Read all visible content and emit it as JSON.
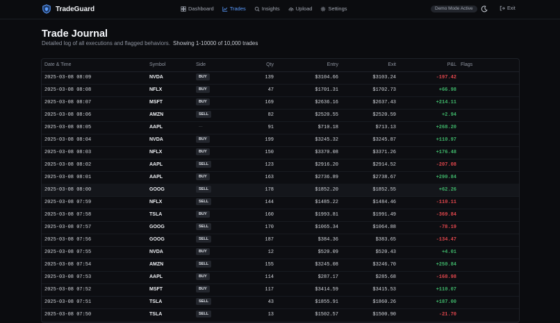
{
  "app": {
    "name": "TradeGuard"
  },
  "nav": [
    {
      "id": "dashboard",
      "label": "Dashboard",
      "icon": "dashboard-icon",
      "active": false
    },
    {
      "id": "trades",
      "label": "Trades",
      "icon": "trades-chart-icon",
      "active": true
    },
    {
      "id": "insights",
      "label": "Insights",
      "icon": "insights-icon",
      "active": false
    },
    {
      "id": "upload",
      "label": "Upload",
      "icon": "upload-cloud-icon",
      "active": false
    },
    {
      "id": "settings",
      "label": "Settings",
      "icon": "gear-icon",
      "active": false
    }
  ],
  "header": {
    "demo_badge": "Demo Mode Active",
    "exit_label": "Exit"
  },
  "page": {
    "title": "Trade Journal",
    "subtitle": "Detailed log of all executions and flagged behaviors.",
    "count_text": "Showing 1-10000 of 10,000 trades"
  },
  "table": {
    "columns": {
      "datetime": "Date & Time",
      "symbol": "Symbol",
      "side": "Side",
      "qty": "Qty",
      "entry": "Entry",
      "exit": "Exit",
      "pnl": "P&L",
      "flags": "Flags"
    },
    "rows": [
      {
        "datetime": "2025-03-08 08:09",
        "symbol": "NVDA",
        "side": "BUY",
        "qty": "139",
        "entry": "$3104.66",
        "exit": "$3103.24",
        "pnl": "-197.42"
      },
      {
        "datetime": "2025-03-08 08:08",
        "symbol": "NFLX",
        "side": "BUY",
        "qty": "47",
        "entry": "$1701.31",
        "exit": "$1702.73",
        "pnl": "+66.98"
      },
      {
        "datetime": "2025-03-08 08:07",
        "symbol": "MSFT",
        "side": "BUY",
        "qty": "169",
        "entry": "$2636.16",
        "exit": "$2637.43",
        "pnl": "+214.11"
      },
      {
        "datetime": "2025-03-08 08:06",
        "symbol": "AMZN",
        "side": "SELL",
        "qty": "82",
        "entry": "$2520.55",
        "exit": "$2520.59",
        "pnl": "+2.94"
      },
      {
        "datetime": "2025-03-08 08:05",
        "symbol": "AAPL",
        "side": "—",
        "qty": "91",
        "entry": "$710.18",
        "exit": "$713.13",
        "pnl": "+268.20"
      },
      {
        "datetime": "2025-03-08 08:04",
        "symbol": "NVDA",
        "side": "BUY",
        "qty": "199",
        "entry": "$3245.32",
        "exit": "$3245.87",
        "pnl": "+110.97"
      },
      {
        "datetime": "2025-03-08 08:03",
        "symbol": "NFLX",
        "side": "BUY",
        "qty": "150",
        "entry": "$3370.08",
        "exit": "$3371.26",
        "pnl": "+176.48"
      },
      {
        "datetime": "2025-03-08 08:02",
        "symbol": "AAPL",
        "side": "SELL",
        "qty": "123",
        "entry": "$2916.20",
        "exit": "$2914.52",
        "pnl": "-207.08"
      },
      {
        "datetime": "2025-03-08 08:01",
        "symbol": "AAPL",
        "side": "BUY",
        "qty": "163",
        "entry": "$2736.89",
        "exit": "$2738.67",
        "pnl": "+290.84"
      },
      {
        "datetime": "2025-03-08 08:00",
        "symbol": "GOOG",
        "side": "SELL",
        "qty": "178",
        "entry": "$1852.20",
        "exit": "$1852.55",
        "pnl": "+62.26"
      },
      {
        "datetime": "2025-03-08 07:59",
        "symbol": "NFLX",
        "side": "SELL",
        "qty": "144",
        "entry": "$1485.22",
        "exit": "$1484.46",
        "pnl": "-110.11"
      },
      {
        "datetime": "2025-03-08 07:58",
        "symbol": "TSLA",
        "side": "BUY",
        "qty": "160",
        "entry": "$1993.81",
        "exit": "$1991.49",
        "pnl": "-369.84"
      },
      {
        "datetime": "2025-03-08 07:57",
        "symbol": "GOOG",
        "side": "SELL",
        "qty": "170",
        "entry": "$1065.34",
        "exit": "$1064.88",
        "pnl": "-78.19"
      },
      {
        "datetime": "2025-03-08 07:56",
        "symbol": "GOOG",
        "side": "SELL",
        "qty": "187",
        "entry": "$384.36",
        "exit": "$383.65",
        "pnl": "-134.47"
      },
      {
        "datetime": "2025-03-08 07:55",
        "symbol": "NVDA",
        "side": "BUY",
        "qty": "12",
        "entry": "$520.09",
        "exit": "$520.43",
        "pnl": "+4.01"
      },
      {
        "datetime": "2025-03-08 07:54",
        "symbol": "AMZN",
        "side": "SELL",
        "qty": "155",
        "entry": "$3245.08",
        "exit": "$3246.70",
        "pnl": "+250.84"
      },
      {
        "datetime": "2025-03-08 07:53",
        "symbol": "AAPL",
        "side": "BUY",
        "qty": "114",
        "entry": "$287.17",
        "exit": "$285.68",
        "pnl": "-168.98"
      },
      {
        "datetime": "2025-03-08 07:52",
        "symbol": "MSFT",
        "side": "BUY",
        "qty": "117",
        "entry": "$3414.59",
        "exit": "$3415.53",
        "pnl": "+110.07"
      },
      {
        "datetime": "2025-03-08 07:51",
        "symbol": "TSLA",
        "side": "SELL",
        "qty": "43",
        "entry": "$1855.91",
        "exit": "$1860.26",
        "pnl": "+187.00"
      },
      {
        "datetime": "2025-03-08 07:50",
        "symbol": "TSLA",
        "side": "SELL",
        "qty": "13",
        "entry": "$1502.57",
        "exit": "$1500.90",
        "pnl": "-21.70"
      }
    ]
  },
  "colors": {
    "accent": "#5b9cff",
    "positive": "#3fb56a",
    "negative": "#e0464c",
    "background": "#0b0c0f"
  }
}
